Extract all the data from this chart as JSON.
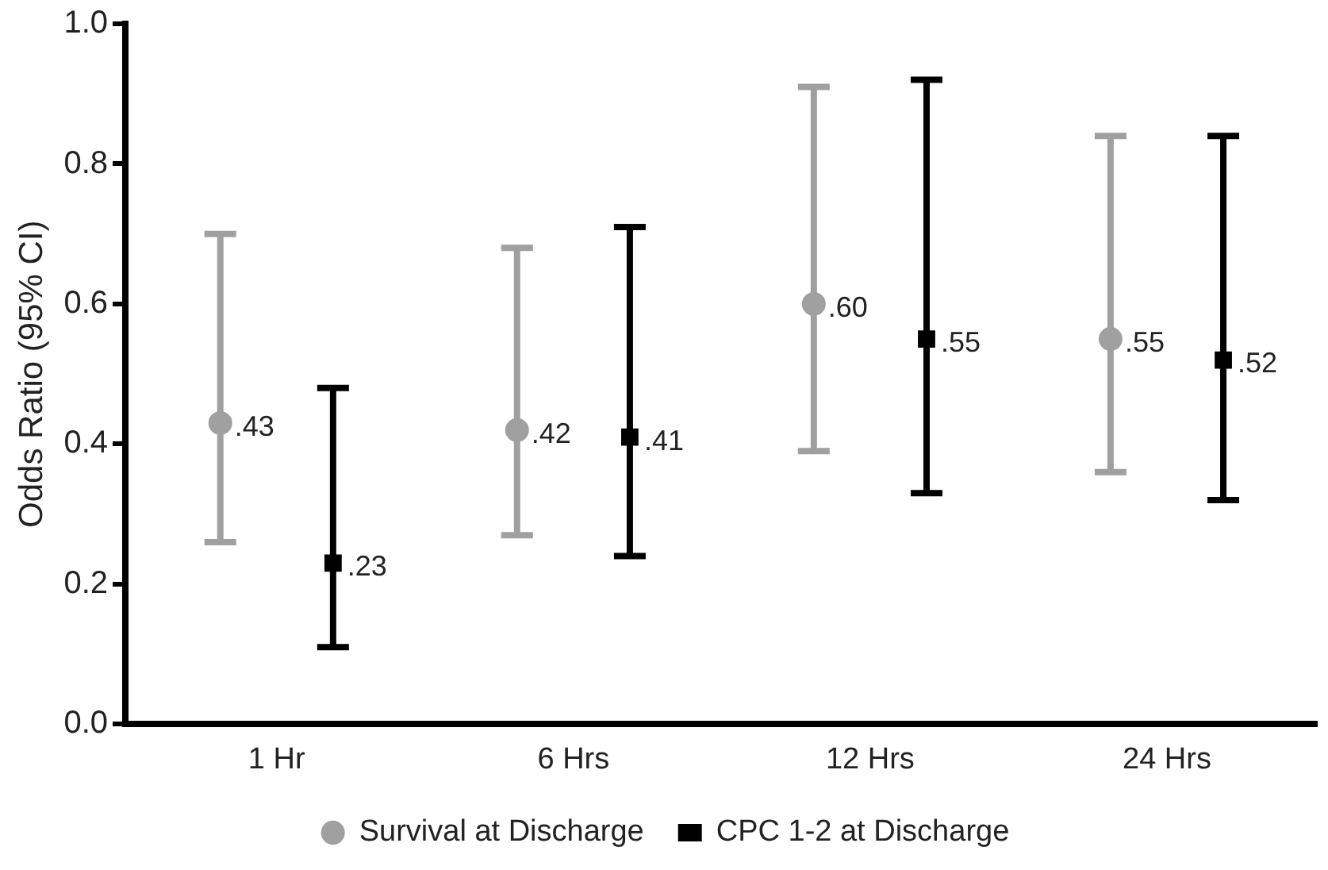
{
  "chart_data": {
    "type": "scatter",
    "ylabel": "Odds Ratio (95% CI)",
    "categories": [
      "1 Hr",
      "6 Hrs",
      "12 Hrs",
      "24 Hrs"
    ],
    "ylim": [
      0,
      1
    ],
    "yticks": [
      {
        "value": 0,
        "label": "0.0"
      },
      {
        "value": 0.2,
        "label": "0.2"
      },
      {
        "value": 0.4,
        "label": "0.4"
      },
      {
        "value": 0.6,
        "label": "0.6"
      },
      {
        "value": 0.8,
        "label": "0.8"
      },
      {
        "value": 1,
        "label": "1.0"
      }
    ],
    "grid": false,
    "legend": "bottom",
    "series": [
      {
        "name": "Survival at Discharge",
        "color": "#a0a0a0",
        "marker": "circle",
        "values": [
          0.43,
          0.42,
          0.6,
          0.55
        ],
        "errors": [
          [
            0.26,
            0.7
          ],
          [
            0.27,
            0.68
          ],
          [
            0.39,
            0.91
          ],
          [
            0.36,
            0.84
          ]
        ],
        "value_labels": [
          ".43",
          ".42",
          ".60",
          ".55"
        ]
      },
      {
        "name": "CPC 1-2 at Discharge",
        "color": "#000000",
        "marker": "square",
        "values": [
          0.23,
          0.41,
          0.55,
          0.52
        ],
        "errors": [
          [
            0.11,
            0.48
          ],
          [
            0.24,
            0.71
          ],
          [
            0.33,
            0.92
          ],
          [
            0.32,
            0.84
          ]
        ],
        "value_labels": [
          ".23",
          ".41",
          ".55",
          ".52"
        ]
      }
    ]
  }
}
